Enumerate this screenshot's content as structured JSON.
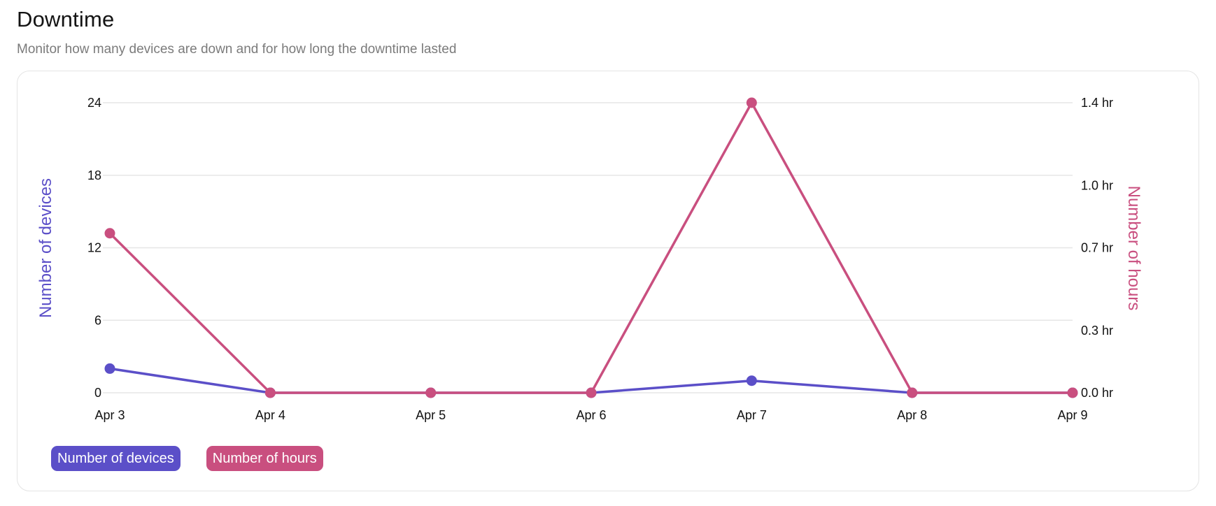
{
  "header": {
    "title": "Downtime",
    "subtitle": "Monitor how many devices are down and for how long the downtime lasted"
  },
  "colors": {
    "devices": "#5b4fc8",
    "hours": "#c94f7f",
    "grid": "#e6e6e6",
    "tick_text": "#111111"
  },
  "legend": [
    {
      "label": "Number of devices",
      "color": "#5b4fc8"
    },
    {
      "label": "Number of hours",
      "color": "#c94f7f"
    }
  ],
  "chart_data": {
    "type": "line",
    "x": [
      "Apr 3",
      "Apr 4",
      "Apr 5",
      "Apr 6",
      "Apr 7",
      "Apr 8",
      "Apr 9"
    ],
    "y_left": {
      "label": "Number of devices",
      "ticks": [
        "0",
        "6",
        "12",
        "18",
        "24"
      ],
      "range": [
        0,
        24
      ]
    },
    "y_right": {
      "label": "Number of hours",
      "ticks": [
        "0.0 hr",
        "0.3 hr",
        "0.7 hr",
        "1.0 hr",
        "1.4 hr"
      ],
      "range": [
        0,
        1.4
      ]
    },
    "series": [
      {
        "name": "Number of devices",
        "axis": "left",
        "color": "#5b4fc8",
        "values": [
          2,
          0,
          0,
          0,
          1,
          0,
          0
        ]
      },
      {
        "name": "Number of hours",
        "axis": "right",
        "color": "#c94f7f",
        "values": [
          0.77,
          0,
          0,
          0,
          1.4,
          0,
          0
        ]
      }
    ],
    "grid": true,
    "legend_position": "bottom-left"
  }
}
